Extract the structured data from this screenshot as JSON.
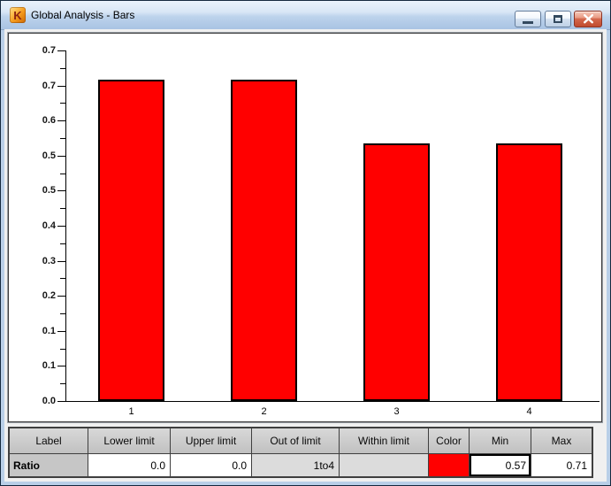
{
  "window": {
    "title": "Global Analysis - Bars",
    "icon_glyph": "K"
  },
  "colors": {
    "bar_red": "#ff0000",
    "frame_blue": "#b9cfe8",
    "titlebar_top": "#eaf2fb",
    "titlebar_bottom": "#a9c3e3",
    "table_header_bg": "#c9c9c9",
    "table_gray_cell_bg": "#dcdcdc",
    "close_button_red": "#c14b2e"
  },
  "chart_data": {
    "type": "bar",
    "title": "",
    "xlabel": "",
    "ylabel": "",
    "categories": [
      "1",
      "2",
      "3",
      "4"
    ],
    "values": [
      0.71,
      0.71,
      0.57,
      0.57
    ],
    "bar_color": "#ff0000",
    "ylim": [
      0,
      0.775
    ],
    "y_tick_labels_top_to_bottom": [
      "0.7",
      "0.7",
      "0.6",
      "0.5",
      "0.5",
      "0.4",
      "0.3",
      "0.2",
      "0.1",
      "0.1",
      "0.0"
    ],
    "minor_ticks_between_majors": true,
    "grid": false,
    "legend": false
  },
  "table": {
    "headers": [
      "Label",
      "Lower limit",
      "Upper limit",
      "Out of limit",
      "Within limit",
      "Color",
      "Min",
      "Max"
    ],
    "rows": [
      {
        "label": "Ratio",
        "lower_limit": "0.0",
        "upper_limit": "0.0",
        "out_of_limit": "1to4",
        "within_limit": "",
        "color": "#ff0000",
        "min": "0.57",
        "max": "0.71"
      }
    ]
  }
}
